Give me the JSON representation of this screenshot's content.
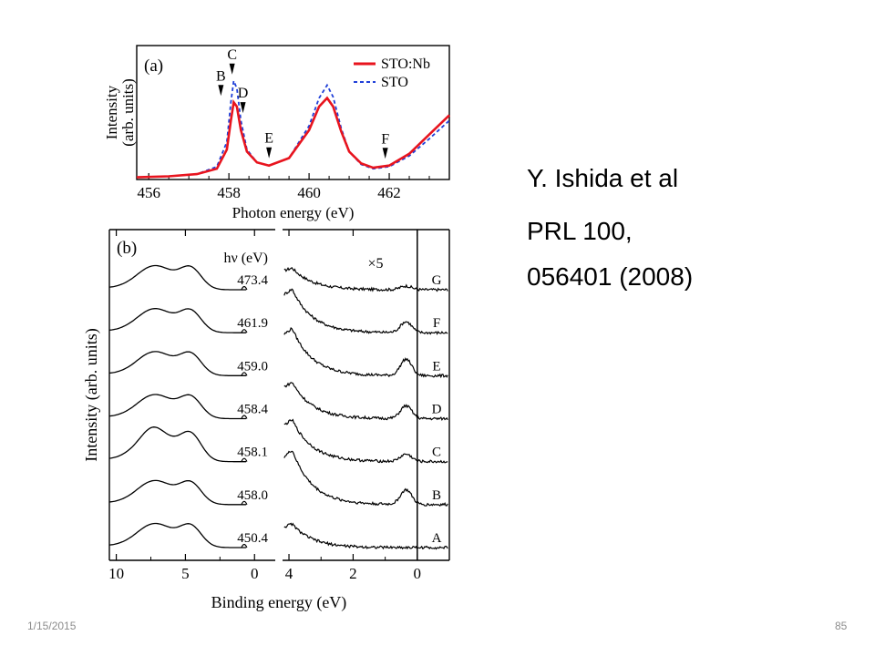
{
  "citation": {
    "authors": "Y. Ishida et al",
    "journal": "PRL 100,",
    "article": "056401 (2008)"
  },
  "footer": {
    "date": "1/15/2015",
    "slide_number": "85"
  },
  "chart_data": [
    {
      "type": "line",
      "panel_label": "(a)",
      "xlabel": "Photon energy (eV)",
      "ylabel": [
        "Intensity",
        "(arb. units)"
      ],
      "xlim": [
        455.7,
        463.5
      ],
      "ylim": [
        0,
        1.25
      ],
      "xticks": [
        456,
        458,
        460,
        462
      ],
      "x": [
        455.7,
        456.5,
        457.2,
        457.7,
        457.95,
        458.05,
        458.12,
        458.2,
        458.3,
        458.45,
        458.7,
        459.0,
        459.5,
        460.0,
        460.25,
        460.45,
        460.6,
        460.8,
        461.0,
        461.3,
        461.6,
        462.0,
        462.5,
        463.0,
        463.5
      ],
      "series": [
        {
          "name": "STO:Nb",
          "color": "#e8141e",
          "style": "solid",
          "values": [
            0.02,
            0.03,
            0.05,
            0.1,
            0.28,
            0.55,
            0.72,
            0.68,
            0.46,
            0.26,
            0.16,
            0.13,
            0.2,
            0.46,
            0.68,
            0.76,
            0.68,
            0.45,
            0.26,
            0.15,
            0.11,
            0.13,
            0.24,
            0.42,
            0.6
          ]
        },
        {
          "name": "STO",
          "color": "#1f3fd8",
          "style": "dashed",
          "values": [
            0.02,
            0.03,
            0.05,
            0.12,
            0.35,
            0.72,
            0.92,
            0.85,
            0.55,
            0.28,
            0.16,
            0.13,
            0.2,
            0.5,
            0.76,
            0.88,
            0.77,
            0.48,
            0.26,
            0.14,
            0.1,
            0.12,
            0.22,
            0.38,
            0.55
          ]
        }
      ],
      "markers": [
        {
          "label": "B",
          "x": 457.8
        },
        {
          "label": "C",
          "x": 458.08
        },
        {
          "label": "D",
          "x": 458.35
        },
        {
          "label": "E",
          "x": 459.0
        },
        {
          "label": "F",
          "x": 461.9
        }
      ]
    },
    {
      "type": "line",
      "panel_label": "(b)",
      "xlabel": "Binding energy (eV)",
      "ylabel": "Intensity (arb. units)",
      "left_xlim": [
        10.5,
        -1.5
      ],
      "left_xticks": [
        10,
        5,
        0
      ],
      "right_xlim": [
        4.2,
        -1.0
      ],
      "right_xticks": [
        4,
        2,
        0
      ],
      "photon_energy_header": "hν (eV)",
      "right_scale_label": "×5",
      "spectra": [
        {
          "hv": "473.4",
          "label": "G"
        },
        {
          "hv": "461.9",
          "label": "F"
        },
        {
          "hv": "459.0",
          "label": "E"
        },
        {
          "hv": "458.4",
          "label": "D"
        },
        {
          "hv": "458.1",
          "label": "C"
        },
        {
          "hv": "458.0",
          "label": "B"
        },
        {
          "hv": "450.4",
          "label": "A"
        }
      ]
    }
  ]
}
